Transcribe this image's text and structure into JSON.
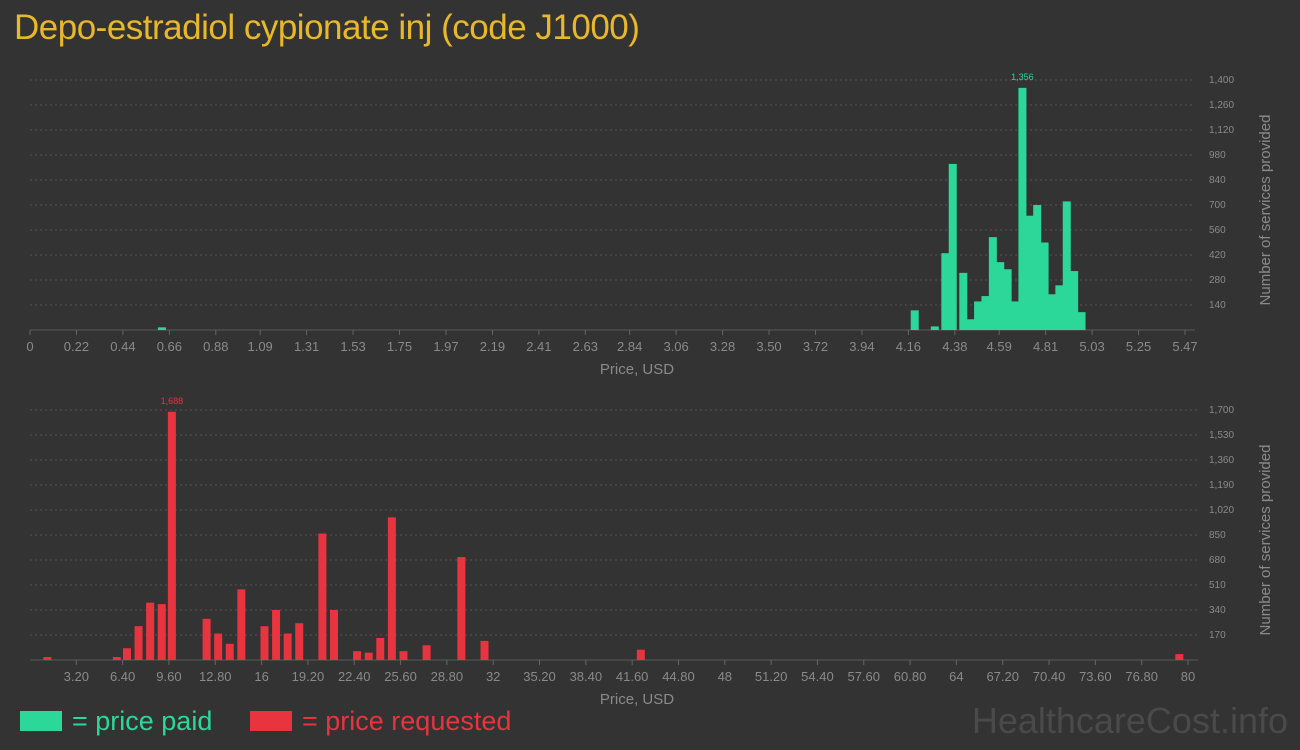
{
  "title": "Depo-estradiol cypionate inj (code J1000)",
  "legend": {
    "paid_label": "= price paid",
    "requested_label": "= price requested"
  },
  "watermark": "HealthcareCost.info",
  "colors": {
    "background": "#333333",
    "title": "#e8b82a",
    "paid": "#2bd89a",
    "requested": "#e8343f",
    "grid": "#555555",
    "axis_text": "#8a8a8a"
  },
  "chart_data": [
    {
      "type": "bar",
      "name": "price paid",
      "color": "#2bd89a",
      "xlabel": "Price, USD",
      "ylabel": "Number of services provided",
      "xlim": [
        0,
        5.47
      ],
      "ylim": [
        0,
        1400
      ],
      "xticks": [
        "0",
        "0.22",
        "0.44",
        "0.66",
        "0.88",
        "1.09",
        "1.31",
        "1.53",
        "1.75",
        "1.97",
        "2.19",
        "2.41",
        "2.63",
        "2.84",
        "3.06",
        "3.28",
        "3.50",
        "3.72",
        "3.94",
        "4.16",
        "4.38",
        "4.59",
        "4.81",
        "5.03",
        "5.25",
        "5.47"
      ],
      "yticks": [
        "140",
        "280",
        "420",
        "560",
        "700",
        "840",
        "980",
        "1,120",
        "1,260",
        "1,400"
      ],
      "grid": true,
      "peak_label": "1,356",
      "bars": [
        {
          "x": 0.625,
          "y": 15
        },
        {
          "x": 4.19,
          "y": 110
        },
        {
          "x": 4.285,
          "y": 20
        },
        {
          "x": 4.335,
          "y": 430
        },
        {
          "x": 4.37,
          "y": 930
        },
        {
          "x": 4.42,
          "y": 320
        },
        {
          "x": 4.455,
          "y": 60
        },
        {
          "x": 4.49,
          "y": 160
        },
        {
          "x": 4.525,
          "y": 190
        },
        {
          "x": 4.56,
          "y": 520
        },
        {
          "x": 4.595,
          "y": 380
        },
        {
          "x": 4.63,
          "y": 340
        },
        {
          "x": 4.665,
          "y": 160
        },
        {
          "x": 4.7,
          "y": 1356
        },
        {
          "x": 4.735,
          "y": 640
        },
        {
          "x": 4.77,
          "y": 700
        },
        {
          "x": 4.805,
          "y": 490
        },
        {
          "x": 4.84,
          "y": 200
        },
        {
          "x": 4.875,
          "y": 250
        },
        {
          "x": 4.91,
          "y": 720
        },
        {
          "x": 4.945,
          "y": 330
        },
        {
          "x": 4.98,
          "y": 100
        }
      ]
    },
    {
      "type": "bar",
      "name": "price requested",
      "color": "#e8343f",
      "xlabel": "Price, USD",
      "ylabel": "Number of services provided",
      "xlim": [
        0,
        80
      ],
      "ylim": [
        0,
        1700
      ],
      "xticks": [
        "3.20",
        "6.40",
        "9.60",
        "12.80",
        "16",
        "19.20",
        "22.40",
        "25.60",
        "28.80",
        "32",
        "35.20",
        "38.40",
        "41.60",
        "44.80",
        "48",
        "51.20",
        "54.40",
        "57.60",
        "60.80",
        "64",
        "67.20",
        "70.40",
        "73.60",
        "76.80",
        "80"
      ],
      "yticks": [
        "170",
        "340",
        "510",
        "680",
        "850",
        "1,020",
        "1,190",
        "1,360",
        "1,530",
        "1,700"
      ],
      "grid": true,
      "peak_label": "1,688",
      "bars": [
        {
          "x": 1.2,
          "y": 20
        },
        {
          "x": 6.0,
          "y": 20
        },
        {
          "x": 6.7,
          "y": 80
        },
        {
          "x": 7.5,
          "y": 230
        },
        {
          "x": 8.3,
          "y": 390
        },
        {
          "x": 9.1,
          "y": 380
        },
        {
          "x": 9.8,
          "y": 1688
        },
        {
          "x": 12.2,
          "y": 280
        },
        {
          "x": 13.0,
          "y": 180
        },
        {
          "x": 13.8,
          "y": 110
        },
        {
          "x": 14.6,
          "y": 480
        },
        {
          "x": 16.2,
          "y": 230
        },
        {
          "x": 17.0,
          "y": 340
        },
        {
          "x": 17.8,
          "y": 180
        },
        {
          "x": 18.6,
          "y": 250
        },
        {
          "x": 20.2,
          "y": 860
        },
        {
          "x": 21.0,
          "y": 340
        },
        {
          "x": 22.6,
          "y": 60
        },
        {
          "x": 23.4,
          "y": 50
        },
        {
          "x": 24.2,
          "y": 150
        },
        {
          "x": 25.0,
          "y": 970
        },
        {
          "x": 25.8,
          "y": 60
        },
        {
          "x": 27.4,
          "y": 100
        },
        {
          "x": 29.8,
          "y": 700
        },
        {
          "x": 31.4,
          "y": 130
        },
        {
          "x": 42.2,
          "y": 70
        },
        {
          "x": 79.4,
          "y": 40
        }
      ]
    }
  ]
}
